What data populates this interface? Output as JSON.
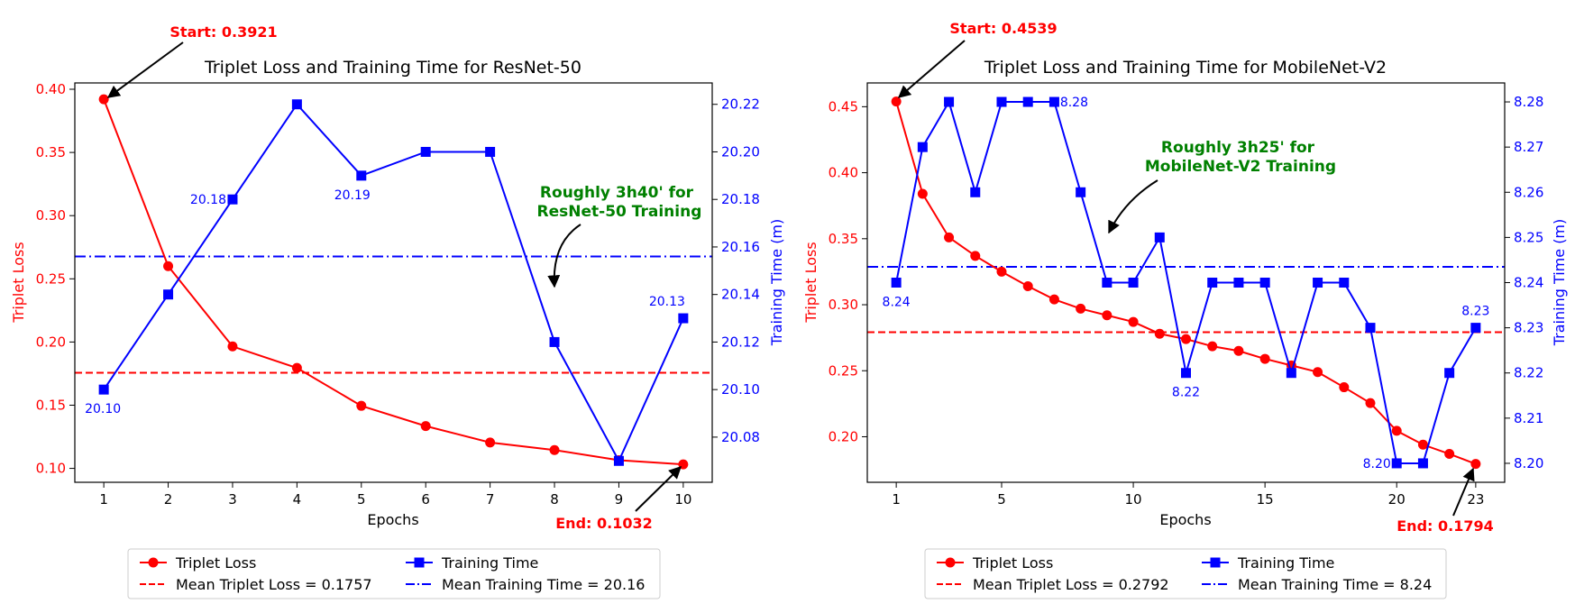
{
  "chart_data": [
    {
      "type": "line",
      "title": "Triplet Loss and Training Time for ResNet-50",
      "xlabel": "Epochs",
      "ylabel": "Triplet Loss",
      "y2label": "Training Time (m)",
      "xlim": [
        0.55,
        10.45
      ],
      "ylim": [
        0.089,
        0.405
      ],
      "y2lim": [
        20.061,
        20.229
      ],
      "xticks": [
        "1",
        "2",
        "3",
        "4",
        "5",
        "6",
        "7",
        "8",
        "9",
        "10"
      ],
      "xtick_values": [
        1,
        2,
        3,
        4,
        5,
        6,
        7,
        8,
        9,
        10
      ],
      "yticks": [
        "0.10",
        "0.15",
        "0.20",
        "0.25",
        "0.30",
        "0.35",
        "0.40"
      ],
      "ytick_values": [
        0.1,
        0.15,
        0.2,
        0.25,
        0.3,
        0.35,
        0.4
      ],
      "y2ticks": [
        "20.08",
        "20.10",
        "20.12",
        "20.14",
        "20.16",
        "20.18",
        "20.20",
        "20.22"
      ],
      "y2tick_values": [
        20.08,
        20.1,
        20.12,
        20.14,
        20.16,
        20.18,
        20.2,
        20.22
      ],
      "series": [
        {
          "name": "Triplet Loss",
          "axis": "left",
          "color": "#ff0000",
          "marker": "circle",
          "x": [
            1,
            2,
            3,
            4,
            5,
            6,
            7,
            8,
            9,
            10
          ],
          "y": [
            0.3921,
            0.26,
            0.1965,
            0.1795,
            0.1495,
            0.1335,
            0.1205,
            0.1145,
            0.1065,
            0.1032
          ]
        },
        {
          "name": "Training Time",
          "axis": "right",
          "color": "#0000ff",
          "marker": "square",
          "x": [
            1,
            2,
            3,
            4,
            5,
            6,
            7,
            8,
            9,
            10
          ],
          "y": [
            20.1,
            20.14,
            20.18,
            20.22,
            20.19,
            20.2,
            20.2,
            20.12,
            20.07,
            20.13
          ]
        }
      ],
      "hlines": [
        {
          "name": "Mean Triplet Loss = 0.1757",
          "axis": "left",
          "value": 0.1757,
          "color": "#ff0000",
          "dash": "dashed"
        },
        {
          "name": "Mean Training Time = 20.16",
          "axis": "right",
          "value": 20.156,
          "color": "#0000ff",
          "dash": "dashdot"
        }
      ],
      "point_labels": [
        {
          "text": "20.10",
          "x": 1,
          "y": 20.1
        },
        {
          "text": "20.18",
          "x": 3,
          "y": 20.18
        },
        {
          "text": "20.19",
          "x": 5,
          "y": 20.19
        },
        {
          "text": "20.13",
          "x": 10,
          "y": 20.13
        }
      ],
      "annotations": {
        "start": {
          "text": "Start: 0.3921",
          "x": 1,
          "y": 0.3921,
          "color": "#ff0000"
        },
        "end": {
          "text": "End: 0.1032",
          "x": 10,
          "y": 0.1032,
          "color": "#ff0000"
        },
        "note": {
          "lines": [
            "Roughly 3h40' for",
            " ResNet-50 Training"
          ],
          "color": "#008000"
        }
      },
      "legend": {
        "placement": "bottom-center",
        "columns": 2
      },
      "grid": false
    },
    {
      "type": "line",
      "title": "Triplet Loss and Training Time for MobileNet-V2",
      "xlabel": "Epochs",
      "ylabel": "Triplet Loss",
      "y2label": "Training Time (m)",
      "xlim": [
        -0.1,
        24.1
      ],
      "ylim": [
        0.1655,
        0.468
      ],
      "y2lim": [
        8.1958,
        8.2842
      ],
      "xticks": [
        "1",
        "5",
        "10",
        "15",
        "20",
        "23"
      ],
      "xtick_values": [
        1,
        5,
        10,
        15,
        20,
        23
      ],
      "yticks": [
        "0.20",
        "0.25",
        "0.30",
        "0.35",
        "0.40",
        "0.45"
      ],
      "ytick_values": [
        0.2,
        0.25,
        0.3,
        0.35,
        0.4,
        0.45
      ],
      "y2ticks": [
        "8.20",
        "8.21",
        "8.22",
        "8.23",
        "8.24",
        "8.25",
        "8.26",
        "8.27",
        "8.28"
      ],
      "y2tick_values": [
        8.2,
        8.21,
        8.22,
        8.23,
        8.24,
        8.25,
        8.26,
        8.27,
        8.28
      ],
      "series": [
        {
          "name": "Triplet Loss",
          "axis": "left",
          "color": "#ff0000",
          "marker": "circle",
          "x": [
            1,
            2,
            3,
            4,
            5,
            6,
            7,
            8,
            9,
            10,
            11,
            12,
            13,
            14,
            15,
            16,
            17,
            18,
            19,
            20,
            21,
            22,
            23
          ],
          "y": [
            0.4539,
            0.384,
            0.351,
            0.337,
            0.325,
            0.314,
            0.304,
            0.297,
            0.292,
            0.287,
            0.278,
            0.274,
            0.2685,
            0.265,
            0.259,
            0.254,
            0.249,
            0.2375,
            0.2255,
            0.2045,
            0.194,
            0.187,
            0.1794
          ]
        },
        {
          "name": "Training Time",
          "axis": "right",
          "color": "#0000ff",
          "marker": "square",
          "x": [
            1,
            2,
            3,
            4,
            5,
            6,
            7,
            8,
            9,
            10,
            11,
            12,
            13,
            14,
            15,
            16,
            17,
            18,
            19,
            20,
            21,
            22,
            23
          ],
          "y": [
            8.24,
            8.27,
            8.28,
            8.26,
            8.28,
            8.28,
            8.28,
            8.26,
            8.24,
            8.24,
            8.25,
            8.22,
            8.24,
            8.24,
            8.24,
            8.22,
            8.24,
            8.24,
            8.23,
            8.2,
            8.2,
            8.22,
            8.23
          ]
        }
      ],
      "hlines": [
        {
          "name": "Mean Triplet Loss = 0.2792",
          "axis": "left",
          "value": 0.2792,
          "color": "#ff0000",
          "dash": "dashed"
        },
        {
          "name": "Mean Training Time = 8.24",
          "axis": "right",
          "value": 8.2435,
          "color": "#0000ff",
          "dash": "dashdot"
        }
      ],
      "point_labels": [
        {
          "text": "8.24",
          "x": 1,
          "y": 8.24
        },
        {
          "text": "8.28",
          "x": 7,
          "y": 8.28
        },
        {
          "text": "8.22",
          "x": 12,
          "y": 8.22
        },
        {
          "text": "8.20",
          "x": 20,
          "y": 8.2
        },
        {
          "text": "8.23",
          "x": 23,
          "y": 8.23
        }
      ],
      "annotations": {
        "start": {
          "text": "Start: 0.4539",
          "x": 1,
          "y": 0.4539,
          "color": "#ff0000"
        },
        "end": {
          "text": "End: 0.1794",
          "x": 23,
          "y": 0.1794,
          "color": "#ff0000"
        },
        "note": {
          "lines": [
            "Roughly 3h25' for",
            " MobileNet-V2 Training"
          ],
          "color": "#008000"
        }
      },
      "legend": {
        "placement": "bottom-center",
        "columns": 2
      },
      "grid": false
    }
  ]
}
